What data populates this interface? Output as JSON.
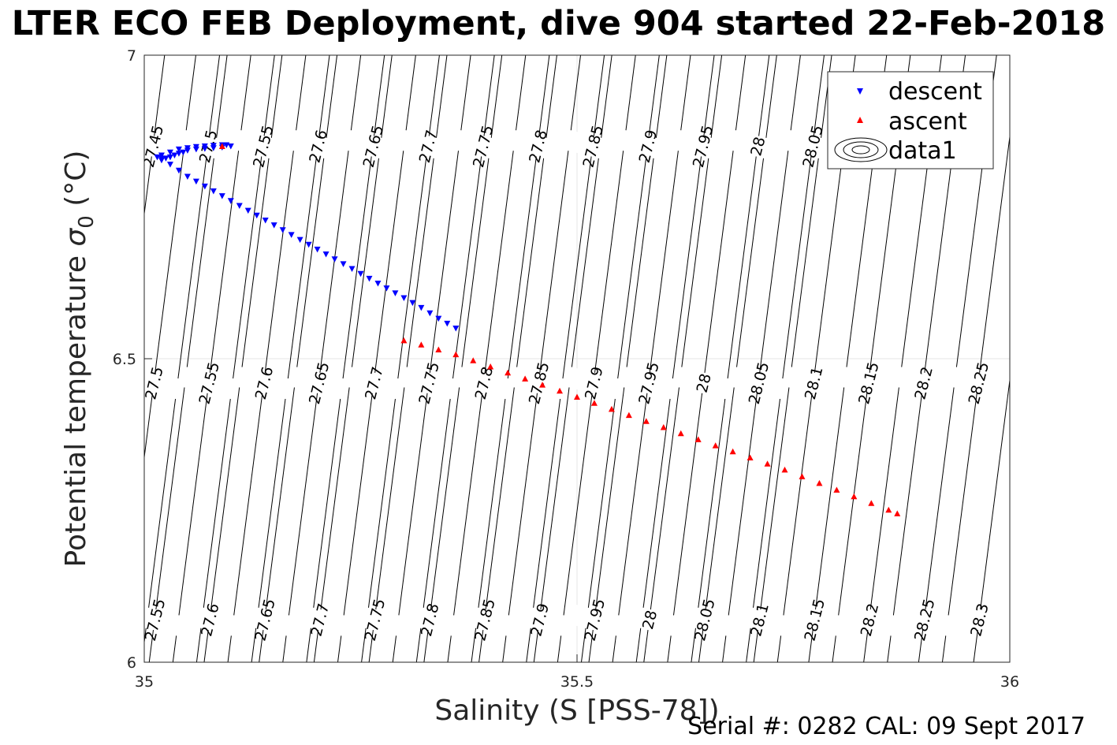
{
  "chart_data": {
    "type": "scatter",
    "title": "LTER ECO FEB Deployment, dive 904 started 22-Feb-2018",
    "xlabel": "Salinity (S [PSS-78])",
    "ylabel_main": "Potential temperature ",
    "ylabel_sigma": "σ",
    "ylabel_sub": "0",
    "ylabel_unit": " (°C)",
    "xlim": [
      35,
      36
    ],
    "ylim": [
      6,
      7
    ],
    "xticks": [
      35,
      35.5,
      36
    ],
    "yticks": [
      6,
      6.5,
      7
    ],
    "xtick_labels": [
      "35",
      "35.5",
      "36"
    ],
    "ytick_labels": [
      "6",
      "6.5",
      "7"
    ],
    "grid": true,
    "legend_position": "top-right",
    "series": [
      {
        "name": "descent",
        "marker": "triangle-down",
        "color": "#0000ff",
        "points": [
          [
            35.1,
            6.85
          ],
          [
            35.09,
            6.848
          ],
          [
            35.08,
            6.847
          ],
          [
            35.07,
            6.846
          ],
          [
            35.06,
            6.845
          ],
          [
            35.05,
            6.843
          ],
          [
            35.045,
            6.84
          ],
          [
            35.04,
            6.838
          ],
          [
            35.035,
            6.835
          ],
          [
            35.03,
            6.832
          ],
          [
            35.025,
            6.83
          ],
          [
            35.02,
            6.827
          ],
          [
            35.015,
            6.832
          ],
          [
            35.02,
            6.835
          ],
          [
            35.03,
            6.84
          ],
          [
            35.04,
            6.845
          ],
          [
            35.05,
            6.847
          ],
          [
            35.06,
            6.849
          ],
          [
            35.07,
            6.85
          ],
          [
            35.08,
            6.851
          ],
          [
            35.09,
            6.852
          ],
          [
            35.095,
            6.852
          ],
          [
            35.02,
            6.83
          ],
          [
            35.03,
            6.82
          ],
          [
            35.04,
            6.81
          ],
          [
            35.05,
            6.8
          ],
          [
            35.06,
            6.792
          ],
          [
            35.07,
            6.784
          ],
          [
            35.08,
            6.776
          ],
          [
            35.09,
            6.768
          ],
          [
            35.1,
            6.76
          ],
          [
            35.11,
            6.752
          ],
          [
            35.12,
            6.744
          ],
          [
            35.13,
            6.736
          ],
          [
            35.14,
            6.728
          ],
          [
            35.15,
            6.72
          ],
          [
            35.16,
            6.712
          ],
          [
            35.17,
            6.704
          ],
          [
            35.18,
            6.696
          ],
          [
            35.19,
            6.688
          ],
          [
            35.2,
            6.68
          ],
          [
            35.21,
            6.672
          ],
          [
            35.22,
            6.664
          ],
          [
            35.23,
            6.656
          ],
          [
            35.24,
            6.648
          ],
          [
            35.25,
            6.64
          ],
          [
            35.26,
            6.632
          ],
          [
            35.27,
            6.624
          ],
          [
            35.28,
            6.616
          ],
          [
            35.29,
            6.608
          ],
          [
            35.3,
            6.6
          ],
          [
            35.31,
            6.592
          ],
          [
            35.32,
            6.584
          ],
          [
            35.33,
            6.575
          ],
          [
            35.34,
            6.566
          ],
          [
            35.35,
            6.558
          ],
          [
            35.36,
            6.55
          ]
        ]
      },
      {
        "name": "ascent",
        "marker": "triangle-up",
        "color": "#ff0000",
        "points": [
          [
            35.09,
            6.85
          ],
          [
            35.3,
            6.53
          ],
          [
            35.32,
            6.523
          ],
          [
            35.34,
            6.515
          ],
          [
            35.36,
            6.507
          ],
          [
            35.38,
            6.497
          ],
          [
            35.4,
            6.487
          ],
          [
            35.42,
            6.477
          ],
          [
            35.44,
            6.467
          ],
          [
            35.46,
            6.457
          ],
          [
            35.48,
            6.447
          ],
          [
            35.5,
            6.437
          ],
          [
            35.52,
            6.427
          ],
          [
            35.54,
            6.417
          ],
          [
            35.56,
            6.407
          ],
          [
            35.58,
            6.397
          ],
          [
            35.6,
            6.387
          ],
          [
            35.62,
            6.377
          ],
          [
            35.64,
            6.367
          ],
          [
            35.66,
            6.357
          ],
          [
            35.68,
            6.347
          ],
          [
            35.7,
            6.337
          ],
          [
            35.72,
            6.327
          ],
          [
            35.74,
            6.317
          ],
          [
            35.76,
            6.306
          ],
          [
            35.78,
            6.295
          ],
          [
            35.8,
            6.284
          ],
          [
            35.82,
            6.273
          ],
          [
            35.84,
            6.262
          ],
          [
            35.86,
            6.251
          ],
          [
            35.87,
            6.245
          ]
        ]
      },
      {
        "name": "data1",
        "marker": "contour",
        "color": "#000000"
      }
    ],
    "density_contours": {
      "slope_per_degC": 0.09,
      "rows": [
        {
          "theta": 6.85,
          "labels": [
            "27.45",
            "27.5",
            "27.55",
            "27.6",
            "27.65",
            "27.7",
            "27.75",
            "27.8",
            "27.85",
            "27.9",
            "27.95",
            "28",
            "28.05"
          ]
        },
        {
          "theta": 6.46,
          "labels": [
            "27.5",
            "27.55",
            "27.6",
            "27.65",
            "27.7",
            "27.75",
            "27.8",
            "27.85",
            "27.9",
            "27.95",
            "28",
            "28.05",
            "28.1",
            "28.15",
            "28.2",
            "28.25"
          ]
        },
        {
          "theta": 6.07,
          "labels": [
            "27.55",
            "27.6",
            "27.65",
            "27.7",
            "27.75",
            "27.8",
            "27.85",
            "27.9",
            "27.95",
            "28",
            "28.05",
            "28.1",
            "28.15",
            "28.2",
            "28.25",
            "28.3"
          ]
        }
      ]
    }
  },
  "footer": {
    "note": "Serial #: 0282  CAL: 09 Sept 2017"
  }
}
